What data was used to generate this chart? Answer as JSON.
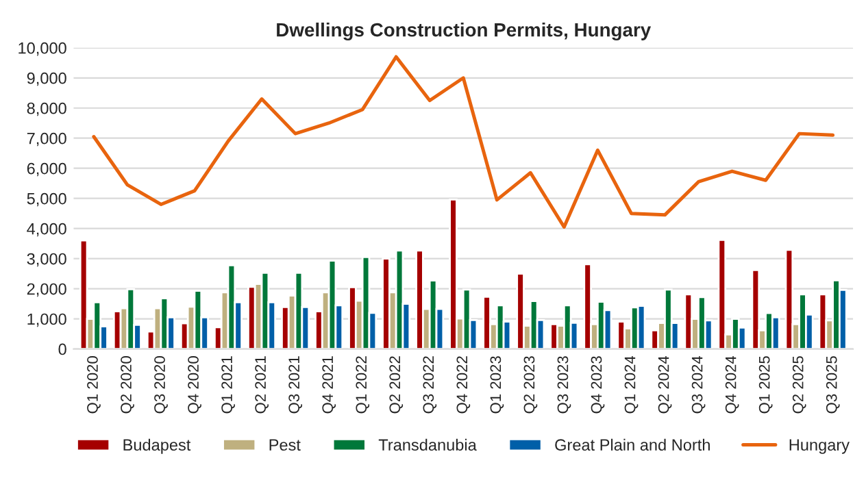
{
  "chart_data": {
    "type": "bar",
    "title": "Dwellings Construction Permits, Hungary",
    "categories": [
      "Q1 2020",
      "Q2 2020",
      "Q3 2020",
      "Q4 2020",
      "Q1 2021",
      "Q2 2021",
      "Q3 2021",
      "Q4 2021",
      "Q1 2022",
      "Q2 2022",
      "Q3 2022",
      "Q4 2022",
      "Q1 2023",
      "Q2 2023",
      "Q3 2023",
      "Q4 2023",
      "Q1 2024",
      "Q2 2024",
      "Q3 2024",
      "Q4 2024",
      "Q1 2025",
      "Q2 2025",
      "Q3 2025"
    ],
    "series": [
      {
        "name": "Budapest",
        "color": "#a50000",
        "values": [
          3600,
          1250,
          580,
          850,
          720,
          2060,
          1390,
          1250,
          2050,
          3000,
          3270,
          4960,
          1730,
          2500,
          820,
          2810,
          910,
          620,
          1810,
          3620,
          2620,
          3290,
          1810
        ]
      },
      {
        "name": "Pest",
        "color": "#bfb07f",
        "values": [
          1000,
          1350,
          1350,
          1400,
          1880,
          2160,
          1770,
          1880,
          1600,
          1880,
          1330,
          1010,
          820,
          770,
          770,
          820,
          680,
          860,
          1000,
          480,
          620,
          820,
          950
        ]
      },
      {
        "name": "Transdanubia",
        "color": "#00783a",
        "values": [
          1550,
          1980,
          1680,
          1930,
          2780,
          2530,
          2530,
          2930,
          3050,
          3270,
          2270,
          1970,
          1450,
          1590,
          1450,
          1570,
          1380,
          1970,
          1720,
          1000,
          1190,
          1810,
          2280
        ]
      },
      {
        "name": "Great Plain and North",
        "color": "#005fa8",
        "values": [
          750,
          800,
          1050,
          1050,
          1550,
          1550,
          1390,
          1450,
          1200,
          1500,
          1330,
          960,
          910,
          960,
          870,
          1290,
          1430,
          860,
          950,
          710,
          1050,
          1140,
          1960
        ]
      },
      {
        "name": "Hungary",
        "type": "line",
        "color": "#e8640e",
        "values": [
          7050,
          5450,
          4800,
          5250,
          6900,
          8300,
          7150,
          7500,
          7950,
          9700,
          8250,
          9000,
          4950,
          5850,
          4050,
          6600,
          4500,
          4450,
          5550,
          5900,
          5600,
          7150,
          7100
        ]
      }
    ],
    "ylim": [
      0,
      10000
    ],
    "yticks": [
      0,
      {
        "value": 1000,
        "label": "1,000"
      },
      {
        "value": 2000,
        "label": "2,000"
      },
      {
        "value": 3000,
        "label": "3,000"
      },
      {
        "value": 4000,
        "label": "4,000"
      },
      {
        "value": 5000,
        "label": "5,000"
      },
      {
        "value": 6000,
        "label": "6,000"
      },
      {
        "value": 7000,
        "label": "7,000"
      },
      {
        "value": 8000,
        "label": "8,000"
      },
      {
        "value": 9000,
        "label": "9,000"
      },
      {
        "value": 10000,
        "label": "10,000"
      }
    ],
    "grid": "y",
    "legend": "bottom"
  }
}
